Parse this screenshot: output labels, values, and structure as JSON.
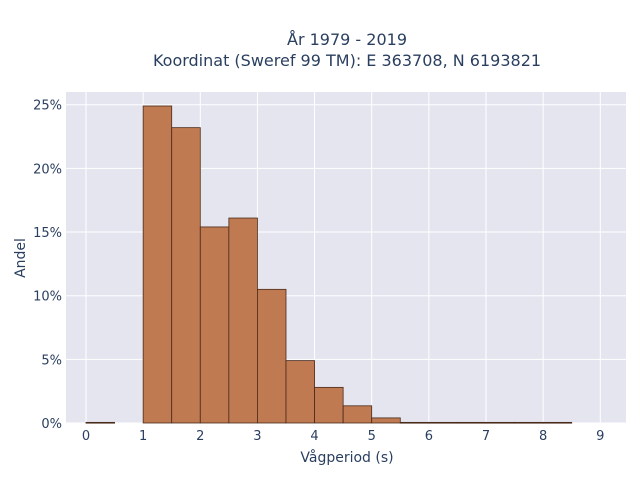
{
  "chart_data": {
    "type": "bar",
    "title_lines": [
      "År 1979 - 2019",
      "Koordinat (Sweref 99 TM): E 363708, N 6193821"
    ],
    "xlabel": "Vågperiod (s)",
    "ylabel": "Andel",
    "xlim": [
      -0.35,
      9.45
    ],
    "ylim": [
      0,
      0.26
    ],
    "x_ticks": [
      0,
      1,
      2,
      3,
      4,
      5,
      6,
      7,
      8,
      9
    ],
    "x_tick_labels": [
      "0",
      "1",
      "2",
      "3",
      "4",
      "5",
      "6",
      "7",
      "8",
      "9"
    ],
    "y_ticks": [
      0,
      0.05,
      0.1,
      0.15,
      0.2,
      0.25
    ],
    "y_tick_labels": [
      "0%",
      "5%",
      "10%",
      "15%",
      "20%",
      "25%"
    ],
    "bin_width": 0.5,
    "bin_starts": [
      0,
      0.5,
      1,
      1.5,
      2,
      2.5,
      3,
      3.5,
      4,
      4.5,
      5,
      5.5,
      6,
      6.5,
      7,
      7.5,
      8
    ],
    "values": [
      0.0005,
      0,
      0.249,
      0.232,
      0.154,
      0.161,
      0.105,
      0.049,
      0.028,
      0.0135,
      0.004,
      0.0005,
      0.0005,
      0.0005,
      0.0005,
      0.0005,
      0.0005
    ],
    "grid": true,
    "colors": {
      "bar_fill": "#bf7a52",
      "bar_stroke": "#4a2a18",
      "plot_bg": "#e5e5f0",
      "grid": "#ffffff"
    }
  }
}
